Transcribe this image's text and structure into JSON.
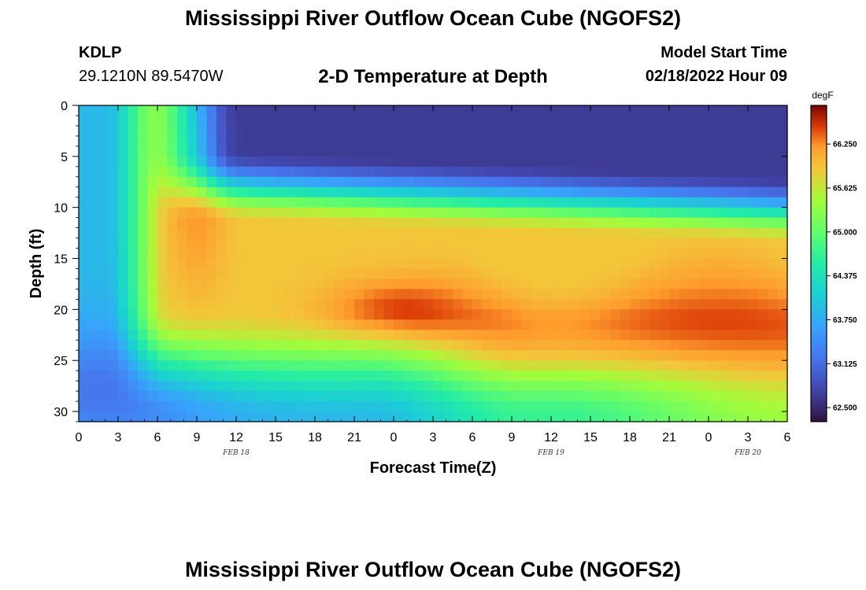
{
  "header": {
    "title": "Mississippi River Outflow Ocean Cube (NGOFS2)",
    "station": "KDLP",
    "coords": "29.1210N  89.5470W",
    "subtitle": "2-D Temperature at Depth",
    "model_start_label": "Model Start Time",
    "model_start_value": "02/18/2022 Hour 09"
  },
  "footer": {
    "title": "Mississippi River Outflow Ocean Cube (NGOFS2)"
  },
  "chart_data": {
    "type": "heatmap",
    "title": "2-D Temperature at Depth",
    "xlabel": "Forecast Time(Z)",
    "ylabel": "Depth (ft)",
    "x_range_hours": [
      0,
      54
    ],
    "y_range_ft": [
      0,
      31
    ],
    "y_inverted": true,
    "x_tick_labels": [
      "0",
      "3",
      "6",
      "9",
      "12",
      "15",
      "18",
      "21",
      "0",
      "3",
      "6",
      "9",
      "12",
      "15",
      "18",
      "21",
      "0",
      "3",
      "6"
    ],
    "y_ticks": [
      0,
      5,
      10,
      15,
      20,
      25,
      30
    ],
    "date_labels": [
      {
        "label": "FEB 18",
        "at_hours": 12
      },
      {
        "label": "FEB 19",
        "at_hours": 36
      },
      {
        "label": "FEB 20",
        "at_hours": 51
      }
    ],
    "colorbar": {
      "unit": "degF",
      "min": 62.3,
      "max": 66.8,
      "tick_values": [
        62.5,
        63.125,
        63.75,
        64.375,
        65.0,
        65.625,
        66.25
      ],
      "tick_labels": [
        "62.500",
        "63.125",
        "63.750",
        "64.375",
        "65.000",
        "65.625",
        "66.250"
      ]
    },
    "grid": false,
    "grid_resolution": {
      "nx": 72,
      "ny": 31
    }
  }
}
